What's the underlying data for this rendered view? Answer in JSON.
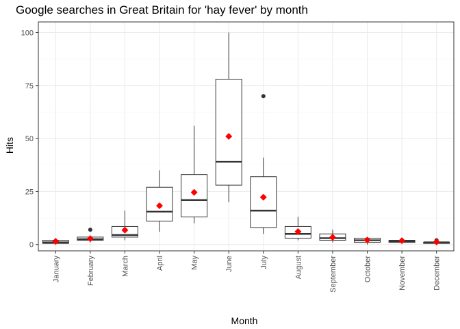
{
  "chart_data": {
    "type": "boxplot",
    "title": "Google searches in Great Britain for 'hay fever' by month",
    "xlabel": "Month",
    "ylabel": "Hits",
    "ylim": [
      -3,
      105
    ],
    "yticks": [
      0,
      25,
      50,
      75,
      100
    ],
    "grid": true,
    "colors": {
      "box": "#333333",
      "mean": "#ff0000",
      "grid_major": "#ebebeb",
      "grid_minor": "#f5f5f5",
      "panel_border": "#333333"
    },
    "categories": [
      "January",
      "February",
      "March",
      "April",
      "May",
      "June",
      "July",
      "August",
      "September",
      "October",
      "November",
      "December"
    ],
    "boxes": [
      {
        "month": "January",
        "min": 0,
        "q1": 0.5,
        "median": 1,
        "q3": 2,
        "max": 3,
        "mean": 1.5,
        "outliers": []
      },
      {
        "month": "February",
        "min": 1,
        "q1": 2,
        "median": 2.5,
        "q3": 3.5,
        "max": 4,
        "mean": 2.8,
        "outliers": [
          7
        ]
      },
      {
        "month": "March",
        "min": 2,
        "q1": 3.5,
        "median": 4.5,
        "q3": 8.5,
        "max": 16,
        "mean": 6.8,
        "outliers": []
      },
      {
        "month": "April",
        "min": 6,
        "q1": 11,
        "median": 15.5,
        "q3": 27,
        "max": 35,
        "mean": 18.3,
        "outliers": []
      },
      {
        "month": "May",
        "min": 10,
        "q1": 13,
        "median": 21,
        "q3": 33,
        "max": 56,
        "mean": 24.6,
        "outliers": []
      },
      {
        "month": "June",
        "min": 20,
        "q1": 28,
        "median": 39,
        "q3": 78,
        "max": 100,
        "mean": 51,
        "outliers": []
      },
      {
        "month": "July",
        "min": 5,
        "q1": 8,
        "median": 16,
        "q3": 32,
        "max": 41,
        "mean": 22.3,
        "outliers": [
          70
        ]
      },
      {
        "month": "August",
        "min": 2,
        "q1": 3,
        "median": 5,
        "q3": 8.5,
        "max": 13,
        "mean": 6.1,
        "outliers": []
      },
      {
        "month": "September",
        "min": 1,
        "q1": 2,
        "median": 3,
        "q3": 5,
        "max": 7,
        "mean": 3.4,
        "outliers": []
      },
      {
        "month": "October",
        "min": 0,
        "q1": 1,
        "median": 2,
        "q3": 3,
        "max": 3.5,
        "mean": 2.1,
        "outliers": []
      },
      {
        "month": "November",
        "min": 1,
        "q1": 1,
        "median": 1.5,
        "q3": 2,
        "max": 3,
        "mean": 1.8,
        "outliers": []
      },
      {
        "month": "December",
        "min": 0,
        "q1": 0.5,
        "median": 1,
        "q3": 1,
        "max": 1.5,
        "mean": 1.2,
        "outliers": [
          2
        ]
      }
    ]
  }
}
